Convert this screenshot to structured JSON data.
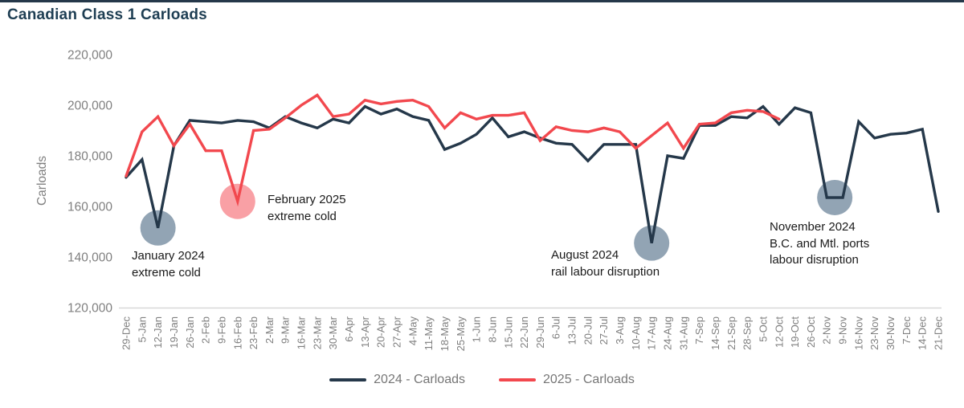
{
  "page": {
    "title": "Canadian Class 1 Carloads"
  },
  "legend": {
    "items": [
      {
        "label": "2024 - Carloads",
        "color": "#25384A"
      },
      {
        "label": "2025 - Carloads",
        "color": "#F2484E"
      }
    ]
  },
  "chart_data": {
    "type": "line",
    "title": "Canadian Class 1 Carloads",
    "xlabel": "",
    "ylabel": "Carloads",
    "ylim": [
      120000,
      220000
    ],
    "ytick_step": 20000,
    "ytick_labels": [
      "220,000",
      "200,000",
      "180,000",
      "160,000",
      "140,000",
      "120,000"
    ],
    "xtick_rotation": -90,
    "grid": false,
    "legend_position": "bottom",
    "categories": [
      "29-Dec",
      "5-Jan",
      "12-Jan",
      "19-Jan",
      "26-Jan",
      "2-Feb",
      "9-Feb",
      "16-Feb",
      "23-Feb",
      "2-Mar",
      "9-Mar",
      "16-Mar",
      "23-Mar",
      "30-Mar",
      "6-Apr",
      "13-Apr",
      "20-Apr",
      "27-Apr",
      "4-May",
      "11-May",
      "18-May",
      "25-May",
      "1-Jun",
      "8-Jun",
      "15-Jun",
      "22-Jun",
      "29-Jun",
      "6-Jul",
      "13-Jul",
      "20-Jul",
      "27-Jul",
      "3-Aug",
      "10-Aug",
      "17-Aug",
      "24-Aug",
      "31-Aug",
      "7-Sep",
      "14-Sep",
      "21-Sep",
      "28-Sep",
      "5-Oct",
      "12-Oct",
      "19-Oct",
      "26-Oct",
      "2-Nov",
      "9-Nov",
      "16-Nov",
      "23-Nov",
      "30-Nov",
      "7-Dec",
      "14-Dec",
      "21-Dec"
    ],
    "series": [
      {
        "name": "2024 - Carloads",
        "color": "#25384A",
        "values": [
          171500,
          178500,
          151500,
          184000,
          194000,
          193500,
          193000,
          194000,
          193500,
          191000,
          195500,
          193000,
          191000,
          194500,
          193000,
          199500,
          196500,
          198500,
          195500,
          194000,
          182500,
          185000,
          188500,
          195000,
          187500,
          189500,
          187000,
          185000,
          184500,
          178000,
          184500,
          184500,
          184500,
          145500,
          180000,
          179000,
          192000,
          192000,
          195500,
          195000,
          199500,
          192500,
          199000,
          197000,
          163500,
          163500,
          193500,
          187000,
          188500,
          189000,
          190500,
          158000
        ]
      },
      {
        "name": "2025 - Carloads",
        "color": "#F2484E",
        "values": [
          172000,
          189500,
          195500,
          184000,
          192500,
          182000,
          182000,
          162000,
          190000,
          190500,
          195000,
          200000,
          204000,
          195500,
          196500,
          202000,
          200500,
          201500,
          202000,
          199500,
          191000,
          197000,
          194500,
          196000,
          196000,
          197000,
          186000,
          191500,
          190000,
          189500,
          191000,
          189500,
          183000,
          188000,
          193000,
          183000,
          192500,
          193000,
          197000,
          198000,
          197500,
          194500,
          null,
          null,
          null,
          null,
          null,
          null,
          null,
          null,
          null,
          null
        ]
      }
    ],
    "annotations": [
      {
        "id": "jan-2024",
        "weeks": [
          "12-Jan"
        ],
        "series": 0,
        "circle_color": "#92A4B4",
        "line1": "January 2024",
        "line2": "extreme cold",
        "line3": ""
      },
      {
        "id": "feb-2025",
        "weeks": [
          "16-Feb"
        ],
        "series": 1,
        "circle_color": "#F9A0A5",
        "line1": "February 2025",
        "line2": "extreme cold",
        "line3": ""
      },
      {
        "id": "aug-2024",
        "weeks": [
          "17-Aug"
        ],
        "series": 0,
        "circle_color": "#92A4B4",
        "line1": "August 2024",
        "line2": "rail labour disruption",
        "line3": ""
      },
      {
        "id": "nov-2024",
        "weeks": [
          "2-Nov",
          "9-Nov"
        ],
        "series": 0,
        "circle_color": "#92A4B4",
        "line1": "November 2024",
        "line2": "B.C. and Mtl. ports",
        "line3": "labour disruption"
      }
    ]
  }
}
